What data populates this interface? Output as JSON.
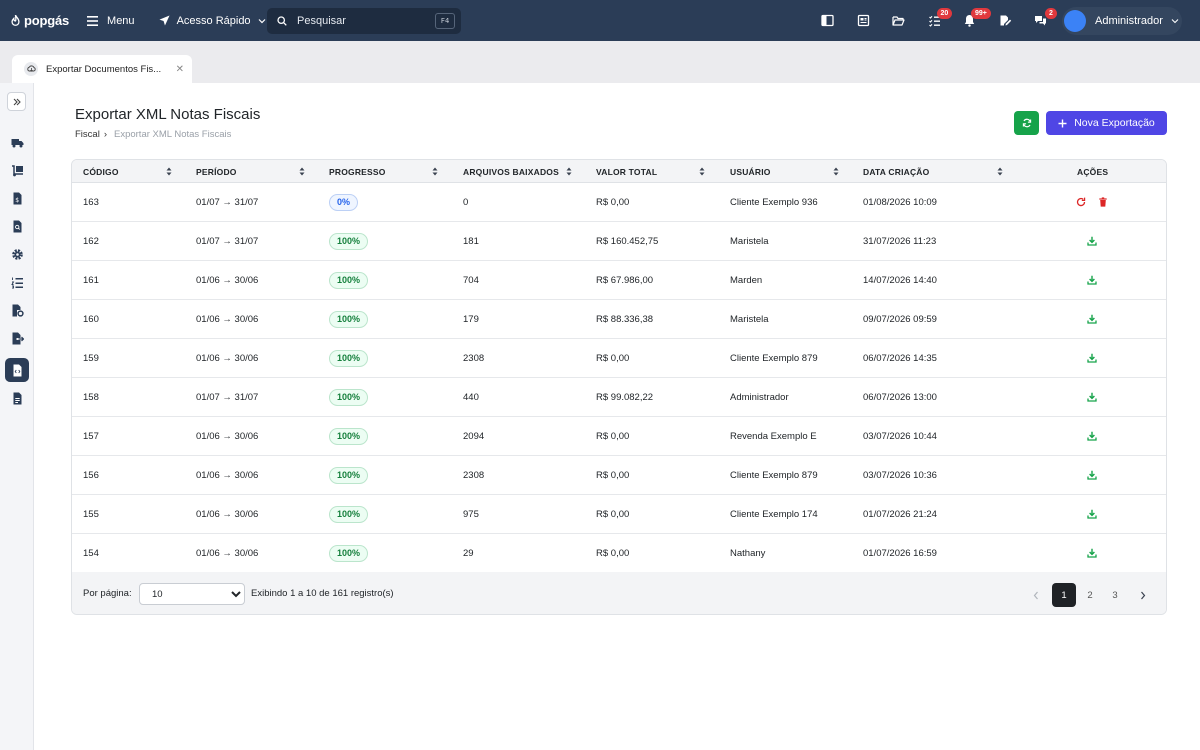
{
  "topbar": {
    "logo": "popgás",
    "menu_label": "Menu",
    "quick_access_label": "Acesso Rápido",
    "search_placeholder": "Pesquisar",
    "search_shortcut": "F4",
    "badges": {
      "tasks": "20",
      "notifications": "99+",
      "messages": "2"
    },
    "user_name": "Administrador"
  },
  "tab": {
    "label": "Exportar Documentos Fis..."
  },
  "page": {
    "title": "Exportar XML Notas Fiscais",
    "breadcrumb": {
      "parent": "Fiscal",
      "separator": "›",
      "current": "Exportar XML Notas Fiscais"
    },
    "new_button_label": "Nova Exportação"
  },
  "table": {
    "headers": {
      "codigo": "CÓDIGO",
      "periodo": "PERÍODO",
      "progresso": "PROGRESSO",
      "arquivos": "ARQUIVOS BAIXADOS",
      "valor": "VALOR TOTAL",
      "usuario": "USUÁRIO",
      "data": "DATA CRIAÇÃO",
      "acoes": "AÇÕES"
    },
    "rows": [
      {
        "codigo": "163",
        "periodo": "01/07 → 31/07",
        "progresso": "0%",
        "arquivos": "0",
        "valor": "R$ 0,00",
        "usuario": "Cliente Exemplo 936",
        "data": "01/08/2026 10:09"
      },
      {
        "codigo": "162",
        "periodo": "01/07 → 31/07",
        "progresso": "100%",
        "arquivos": "181",
        "valor": "R$ 160.452,75",
        "usuario": "Maristela",
        "data": "31/07/2026 11:23"
      },
      {
        "codigo": "161",
        "periodo": "01/06 → 30/06",
        "progresso": "100%",
        "arquivos": "704",
        "valor": "R$ 67.986,00",
        "usuario": "Marden",
        "data": "14/07/2026 14:40"
      },
      {
        "codigo": "160",
        "periodo": "01/06 → 30/06",
        "progresso": "100%",
        "arquivos": "179",
        "valor": "R$ 88.336,38",
        "usuario": "Maristela",
        "data": "09/07/2026 09:59"
      },
      {
        "codigo": "159",
        "periodo": "01/06 → 30/06",
        "progresso": "100%",
        "arquivos": "2308",
        "valor": "R$ 0,00",
        "usuario": "Cliente Exemplo 879",
        "data": "06/07/2026 14:35"
      },
      {
        "codigo": "158",
        "periodo": "01/07 → 31/07",
        "progresso": "100%",
        "arquivos": "440",
        "valor": "R$ 99.082,22",
        "usuario": "Administrador",
        "data": "06/07/2026 13:00"
      },
      {
        "codigo": "157",
        "periodo": "01/06 → 30/06",
        "progresso": "100%",
        "arquivos": "2094",
        "valor": "R$ 0,00",
        "usuario": "Revenda Exemplo E",
        "data": "03/07/2026 10:44"
      },
      {
        "codigo": "156",
        "periodo": "01/06 → 30/06",
        "progresso": "100%",
        "arquivos": "2308",
        "valor": "R$ 0,00",
        "usuario": "Cliente Exemplo 879",
        "data": "03/07/2026 10:36"
      },
      {
        "codigo": "155",
        "periodo": "01/06 → 30/06",
        "progresso": "100%",
        "arquivos": "975",
        "valor": "R$ 0,00",
        "usuario": "Cliente Exemplo 174",
        "data": "01/07/2026 21:24"
      },
      {
        "codigo": "154",
        "periodo": "01/06 → 30/06",
        "progresso": "100%",
        "arquivos": "29",
        "valor": "R$ 0,00",
        "usuario": "Nathany",
        "data": "01/07/2026 16:59"
      }
    ]
  },
  "footer": {
    "per_page_label": "Por página:",
    "per_page_value": "10",
    "info": "Exibindo 1 a 10 de 161 registro(s)",
    "pages": [
      "1",
      "2",
      "3"
    ],
    "current_page": "1"
  },
  "colors": {
    "topbar": "#2b3d57",
    "success": "#16a34a",
    "primary": "#4f46e5",
    "danger": "#dc2626",
    "badge": "#e0393e"
  }
}
